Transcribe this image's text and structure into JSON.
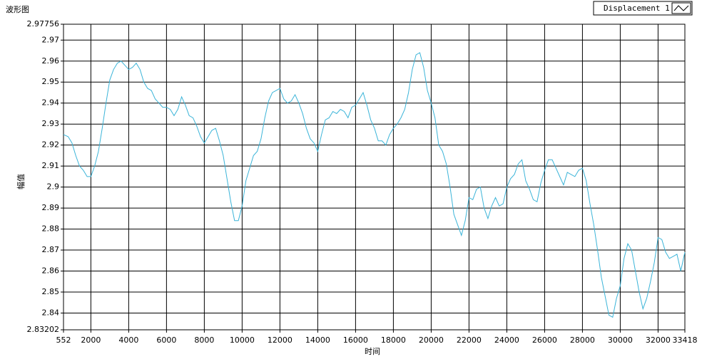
{
  "chart_data": {
    "type": "line",
    "title": "波形图",
    "x_label": "时间",
    "y_label": "幅值",
    "xlim": [
      552,
      33418
    ],
    "ylim": [
      2.83202,
      2.97756
    ],
    "xticks": [
      552,
      2000,
      4000,
      6000,
      8000,
      10000,
      12000,
      14000,
      16000,
      18000,
      20000,
      22000,
      24000,
      26000,
      28000,
      30000,
      32000,
      33418
    ],
    "yticks": [
      2.83202,
      2.84,
      2.85,
      2.86,
      2.87,
      2.88,
      2.89,
      2.9,
      2.91,
      2.92,
      2.93,
      2.94,
      2.95,
      2.96,
      2.97,
      2.97756
    ],
    "grid": true,
    "x": [
      552,
      800,
      1000,
      1200,
      1400,
      1600,
      1800,
      2000,
      2200,
      2400,
      2600,
      2800,
      3000,
      3200,
      3400,
      3600,
      3800,
      4000,
      4200,
      4400,
      4600,
      4800,
      5000,
      5200,
      5400,
      5600,
      5800,
      6000,
      6200,
      6400,
      6600,
      6800,
      7000,
      7200,
      7400,
      7600,
      7800,
      8000,
      8200,
      8400,
      8600,
      8800,
      9000,
      9200,
      9400,
      9600,
      9800,
      10000,
      10200,
      10400,
      10600,
      10800,
      11000,
      11200,
      11400,
      11600,
      11800,
      12000,
      12200,
      12400,
      12600,
      12800,
      13000,
      13200,
      13400,
      13600,
      13800,
      14000,
      14200,
      14400,
      14600,
      14800,
      15000,
      15200,
      15400,
      15600,
      15800,
      16000,
      16200,
      16400,
      16600,
      16800,
      17000,
      17200,
      17400,
      17600,
      17800,
      18000,
      18200,
      18400,
      18600,
      18800,
      19000,
      19200,
      19400,
      19600,
      19800,
      20000,
      20200,
      20400,
      20600,
      20800,
      21000,
      21200,
      21400,
      21600,
      21800,
      22000,
      22200,
      22400,
      22600,
      22800,
      23000,
      23200,
      23400,
      23600,
      23800,
      24000,
      24200,
      24400,
      24600,
      24800,
      25000,
      25200,
      25400,
      25600,
      25800,
      26000,
      26200,
      26400,
      26600,
      26800,
      27000,
      27200,
      27400,
      27600,
      27800,
      28000,
      28200,
      28400,
      28600,
      28800,
      29000,
      29200,
      29400,
      29600,
      29800,
      30000,
      30200,
      30400,
      30600,
      30800,
      31000,
      31200,
      31400,
      31600,
      31800,
      32000,
      32200,
      32400,
      32600,
      32800,
      33000,
      33200,
      33418
    ],
    "series": [
      {
        "name": "Displacement 1",
        "color": "#3bb4d8",
        "values": [
          2.925,
          2.924,
          2.921,
          2.915,
          2.91,
          2.908,
          2.905,
          2.905,
          2.91,
          2.917,
          2.928,
          2.94,
          2.951,
          2.956,
          2.959,
          2.96,
          2.958,
          2.956,
          2.957,
          2.959,
          2.956,
          2.95,
          2.947,
          2.946,
          2.942,
          2.94,
          2.938,
          2.938,
          2.937,
          2.934,
          2.937,
          2.943,
          2.939,
          2.934,
          2.933,
          2.929,
          2.924,
          2.921,
          2.924,
          2.927,
          2.928,
          2.922,
          2.915,
          2.904,
          2.893,
          2.884,
          2.884,
          2.891,
          2.903,
          2.909,
          2.915,
          2.917,
          2.923,
          2.933,
          2.941,
          2.945,
          2.946,
          2.947,
          2.942,
          2.94,
          2.941,
          2.944,
          2.94,
          2.935,
          2.928,
          2.923,
          2.921,
          2.917,
          2.925,
          2.932,
          2.933,
          2.936,
          2.935,
          2.937,
          2.936,
          2.933,
          2.938,
          2.939,
          2.942,
          2.945,
          2.939,
          2.932,
          2.928,
          2.922,
          2.922,
          2.92,
          2.925,
          2.928,
          2.93,
          2.933,
          2.937,
          2.945,
          2.956,
          2.963,
          2.964,
          2.957,
          2.946,
          2.94,
          2.933,
          2.92,
          2.917,
          2.911,
          2.9,
          2.887,
          2.882,
          2.877,
          2.884,
          2.895,
          2.894,
          2.899,
          2.9,
          2.89,
          2.885,
          2.891,
          2.895,
          2.891,
          2.892,
          2.9,
          2.904,
          2.906,
          2.911,
          2.913,
          2.903,
          2.899,
          2.894,
          2.893,
          2.902,
          2.908,
          2.913,
          2.913,
          2.909,
          2.905,
          2.901,
          2.907,
          2.906,
          2.905,
          2.908,
          2.909,
          2.903,
          2.892,
          2.882,
          2.87,
          2.857,
          2.848,
          2.839,
          2.838,
          2.847,
          2.853,
          2.866,
          2.873,
          2.87,
          2.86,
          2.85,
          2.842,
          2.847,
          2.855,
          2.864,
          2.876,
          2.875,
          2.869,
          2.866,
          2.867,
          2.868,
          2.86,
          2.869
        ]
      }
    ]
  }
}
